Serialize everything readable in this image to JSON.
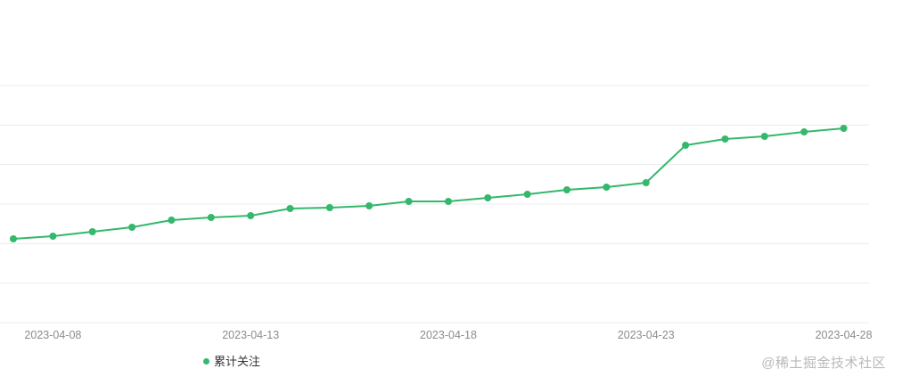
{
  "chart_data": {
    "type": "line",
    "title": "",
    "xlabel": "",
    "ylabel": "",
    "legend_position": "bottom",
    "grid": true,
    "series": [
      {
        "name": "累计关注",
        "x": [
          "2023-04-07",
          "2023-04-08",
          "2023-04-09",
          "2023-04-10",
          "2023-04-11",
          "2023-04-12",
          "2023-04-13",
          "2023-04-14",
          "2023-04-15",
          "2023-04-16",
          "2023-04-17",
          "2023-04-18",
          "2023-04-19",
          "2023-04-20",
          "2023-04-21",
          "2023-04-22",
          "2023-04-23",
          "2023-04-24",
          "2023-04-25",
          "2023-04-26",
          "2023-04-27",
          "2023-04-28"
        ],
        "values": [
          94,
          97,
          102,
          107,
          115,
          118,
          120,
          128,
          129,
          131,
          136,
          136,
          140,
          144,
          149,
          152,
          157,
          199,
          206,
          209,
          214,
          218
        ]
      }
    ],
    "x_tick_labels": [
      "2023-04-08",
      "2023-04-13",
      "2023-04-18",
      "2023-04-23",
      "2023-04-28"
    ],
    "value_axis_labels_visible": false,
    "ylim": [
      0,
      300
    ]
  },
  "style": {
    "line_color": "#33b86c",
    "grid_color": "#ececec",
    "axis_label_color": "#8c8c8c"
  },
  "legend": {
    "label": "累计关注",
    "color": "#33b86c"
  },
  "watermark": "@稀土掘金技术社区"
}
